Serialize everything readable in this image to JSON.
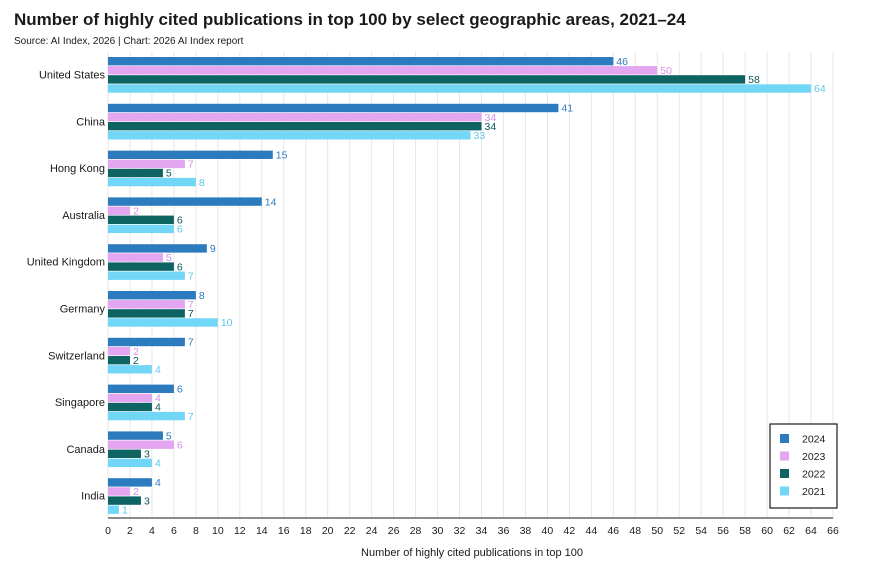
{
  "chart_data": {
    "type": "bar",
    "orientation": "horizontal",
    "title": "Number of highly cited publications in top 100 by select geographic areas, 2021–24",
    "subtitle": "Source: AI Index, 2026 | Chart: 2026 AI Index report",
    "xlabel": "Number of highly cited publications in top 100",
    "ylabel": "",
    "xlim": [
      0,
      66
    ],
    "xticks": [
      0,
      2,
      4,
      6,
      8,
      10,
      12,
      14,
      16,
      18,
      20,
      22,
      24,
      26,
      28,
      30,
      32,
      34,
      36,
      38,
      40,
      42,
      44,
      46,
      48,
      50,
      52,
      54,
      56,
      58,
      60,
      62,
      64,
      66
    ],
    "grid": true,
    "legend_position": "bottom-right",
    "categories": [
      "United States",
      "China",
      "Hong Kong",
      "Australia",
      "United Kingdom",
      "Germany",
      "Switzerland",
      "Singapore",
      "Canada",
      "India"
    ],
    "series": [
      {
        "name": "2024",
        "color": "#2c7bbf",
        "label_color": "#2c7bbf",
        "values": [
          46,
          41,
          15,
          14,
          9,
          8,
          7,
          6,
          5,
          4
        ]
      },
      {
        "name": "2023",
        "color": "#e4a6f1",
        "label_color": "#d38fe6",
        "values": [
          50,
          34,
          7,
          2,
          5,
          7,
          2,
          4,
          6,
          2
        ]
      },
      {
        "name": "2022",
        "color": "#0d6462",
        "label_color": "#0d5755",
        "values": [
          58,
          34,
          5,
          6,
          6,
          7,
          2,
          4,
          3,
          3
        ]
      },
      {
        "name": "2021",
        "color": "#72d7f7",
        "label_color": "#5bc8ef",
        "values": [
          64,
          33,
          8,
          6,
          7,
          10,
          4,
          7,
          4,
          1
        ]
      }
    ]
  }
}
